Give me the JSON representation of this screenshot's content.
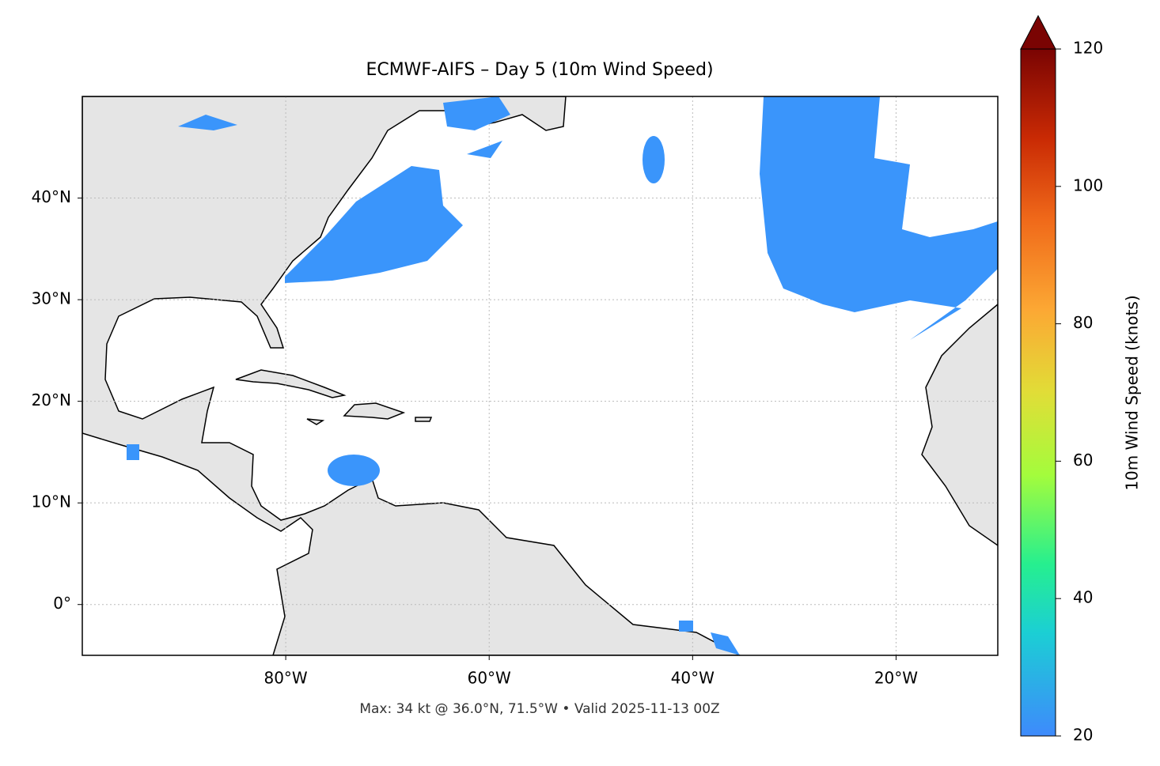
{
  "chart_data": {
    "type": "map",
    "title": "ECMWF-AIFS – Day 5 (10m Wind Speed)",
    "footer": "Max: 34 kt @ 36.0°N, 71.5°W • Valid 2025-11-13 00Z",
    "xlim": [
      -100,
      -10
    ],
    "ylim": [
      -5,
      50
    ],
    "xticks": [
      {
        "value": -80,
        "label": "80°W"
      },
      {
        "value": -60,
        "label": "60°W"
      },
      {
        "value": -40,
        "label": "40°W"
      },
      {
        "value": -20,
        "label": "20°W"
      }
    ],
    "yticks": [
      {
        "value": 0,
        "label": "0°"
      },
      {
        "value": 10,
        "label": "10°N"
      },
      {
        "value": 20,
        "label": "20°N"
      },
      {
        "value": 30,
        "label": "30°N"
      },
      {
        "value": 40,
        "label": "40°N"
      }
    ],
    "grid": true,
    "colorbar": {
      "label": "10m Wind Speed (knots)",
      "lim": [
        20,
        120
      ],
      "ticks": [
        20,
        40,
        60,
        80,
        100,
        120
      ]
    }
  }
}
